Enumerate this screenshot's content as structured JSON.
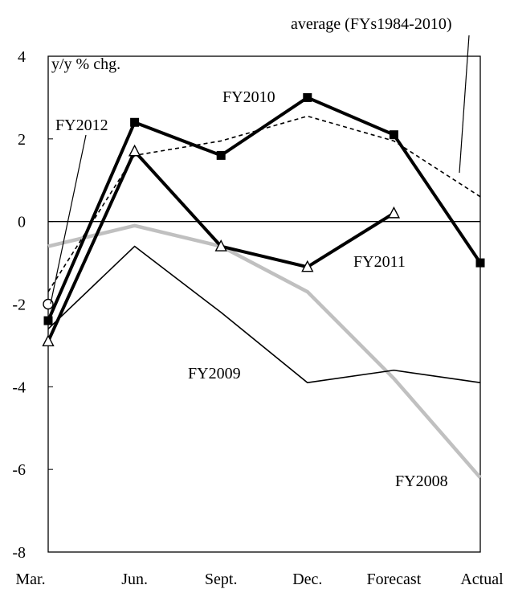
{
  "chart_data": {
    "type": "line",
    "ylabel": "y/y % chg.",
    "categories": [
      "Mar.",
      "Jun.",
      "Sept.",
      "Dec.",
      "Forecast",
      "Actual"
    ],
    "ylim": [
      -8,
      4
    ],
    "yticks": [
      "4",
      "2",
      "0",
      "-2",
      "-4",
      "-6",
      "-8"
    ],
    "ytick_values": [
      4,
      2,
      0,
      -2,
      -4,
      -6,
      -8
    ],
    "grid": false,
    "series": [
      {
        "name": "FY2008",
        "values": [
          -0.6,
          -0.1,
          -0.6,
          -1.7,
          -3.8,
          -6.2
        ],
        "color": "#c0c0c0",
        "style": "thick-gray"
      },
      {
        "name": "FY2009",
        "values": [
          -2.6,
          -0.6,
          -2.2,
          -3.9,
          -3.6,
          -3.9
        ],
        "color": "#000000",
        "style": "thin"
      },
      {
        "name": "average (FYs1984-2010)",
        "values": [
          -1.7,
          1.6,
          1.95,
          2.55,
          1.95,
          0.6
        ],
        "color": "#000000",
        "style": "dashed"
      },
      {
        "name": "FY2010",
        "values": [
          -2.4,
          2.4,
          1.6,
          3.0,
          2.1,
          -1.0
        ],
        "color": "#000000",
        "style": "thick",
        "marker": "square"
      },
      {
        "name": "FY2011",
        "values": [
          -2.9,
          1.7,
          -0.6,
          -1.1,
          0.2,
          null
        ],
        "color": "#000000",
        "style": "thick",
        "marker": "triangle"
      },
      {
        "name": "FY2012",
        "values": [
          -2.0,
          null,
          null,
          null,
          null,
          null
        ],
        "color": "#000000",
        "style": "thick",
        "marker": "circle"
      }
    ]
  }
}
